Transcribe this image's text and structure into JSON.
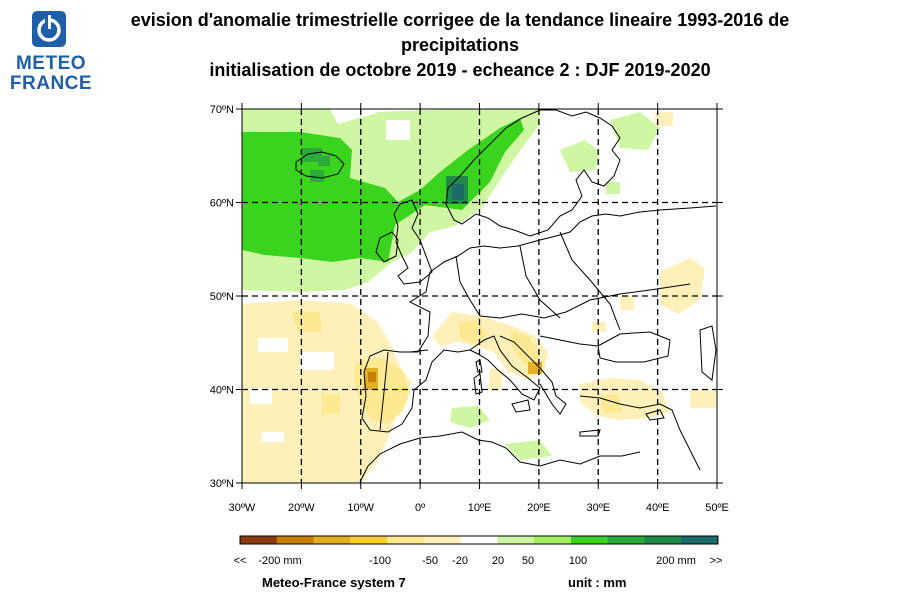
{
  "header": {
    "title_line1": "evision d'anomalie trimestrielle corrigee de la tendance lineaire 1993-2016 de",
    "title_line2": "precipitations",
    "title_line3": "initialisation de octobre 2019  -  echeance 2 : DJF 2019-2020"
  },
  "logo": {
    "line1": "METEO",
    "line2": "FRANCE",
    "icon": "meteo-france-logo-icon",
    "color": "#1f5fa8"
  },
  "map": {
    "lon_range": [
      -30,
      50
    ],
    "lat_range": [
      30,
      70
    ],
    "lat_ticks": [
      "30ºN",
      "40ºN",
      "50ºN",
      "60ºN",
      "70ºN"
    ],
    "lon_ticks": [
      "30ºW",
      "20ºW",
      "10ºW",
      "0º",
      "10ºE",
      "20ºE",
      "30ºE",
      "40ºE",
      "50ºE"
    ],
    "grid": "dashed"
  },
  "legend": {
    "colors": [
      "#8b3a0f",
      "#c87f00",
      "#e3b022",
      "#fbd02e",
      "#fde991",
      "#fdf0b9",
      "#ffffff",
      "#cff6a3",
      "#a3ef62",
      "#3ad41f",
      "#2bab3a",
      "#1f8b48",
      "#1b6b6b"
    ],
    "labels": [
      "<<",
      "-200 mm",
      "-100",
      "-50",
      "-20",
      "20",
      "50",
      "100",
      "200 mm",
      ">>"
    ]
  },
  "footer": {
    "model": "Meteo-France system 7",
    "unit": "unit :  mm"
  }
}
